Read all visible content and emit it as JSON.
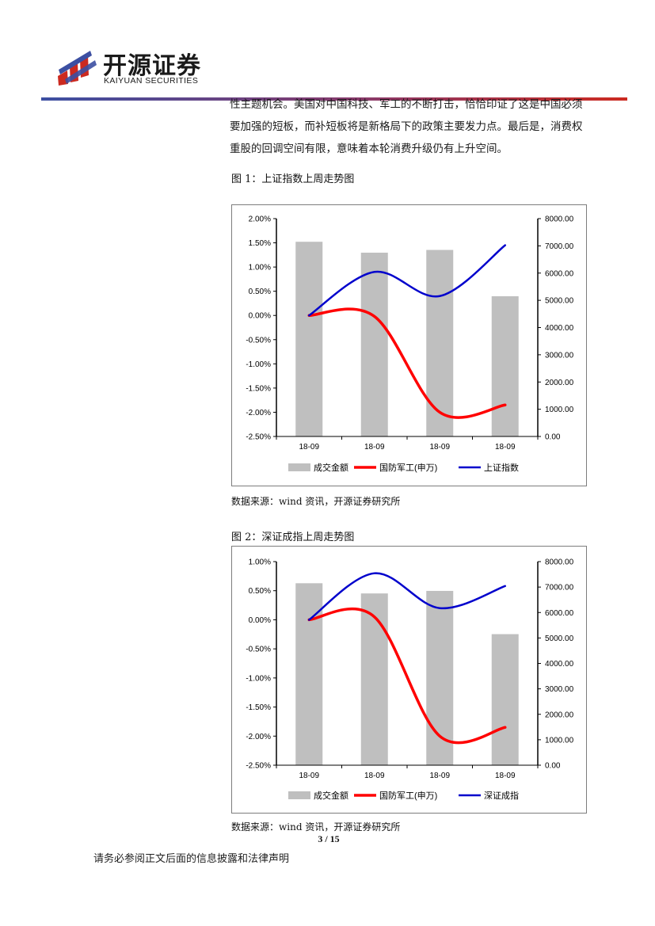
{
  "header": {
    "brand_cn": "开源证券",
    "brand_en": "KAIYUAN SECURITIES",
    "rule_colors": [
      "#cc2a20",
      "#3c4fa2"
    ]
  },
  "body_text": {
    "lines": [
      "性主题机会。美国对中国科技、军工的不断打击，恰恰印证了这是中国必须",
      "要加强的短板，而补短板将是新格局下的政策主要发力点。最后是，消费权",
      "重股的回调空间有限，意味着本轮消费升级仍有上升空间。"
    ]
  },
  "figures": [
    {
      "caption": "图 1：上证指数上周走势图",
      "source": "数据来源：wind 资讯，开源证券研究所"
    },
    {
      "caption": "图 2：深证成指上周走势图",
      "source": "数据来源：wind 资讯，开源证券研究所"
    }
  ],
  "chart_data": [
    {
      "type": "bar",
      "categories": [
        "18-09",
        "18-09",
        "18-09",
        "18-09"
      ],
      "y_left": {
        "ticks": [
          "2.00%",
          "1.50%",
          "1.00%",
          "0.50%",
          "0.00%",
          "-0.50%",
          "-1.00%",
          "-1.50%",
          "-2.00%",
          "-2.50%"
        ],
        "range": [
          -2.5,
          2.0
        ]
      },
      "y_right": {
        "ticks": [
          "8000.00",
          "7000.00",
          "6000.00",
          "5000.00",
          "4000.00",
          "3000.00",
          "2000.00",
          "1000.00",
          "0.00"
        ],
        "range": [
          0,
          8000
        ]
      },
      "series": [
        {
          "name": "成交金额",
          "kind": "bar",
          "axis": "right",
          "color": "#bfbfbf",
          "values": [
            7150,
            6750,
            6850,
            5150
          ]
        },
        {
          "name": "国防军工(申万)",
          "kind": "line",
          "axis": "left",
          "color": "#ff0000",
          "values": [
            0.0,
            -0.02,
            -2.0,
            -1.85
          ]
        },
        {
          "name": "上证指数",
          "kind": "line",
          "axis": "left",
          "color": "#0000cc",
          "values": [
            0.0,
            0.9,
            0.4,
            1.45
          ]
        }
      ],
      "grid": false,
      "legend": "bottom"
    },
    {
      "type": "bar",
      "categories": [
        "18-09",
        "18-09",
        "18-09",
        "18-09"
      ],
      "y_left": {
        "ticks": [
          "1.00%",
          "0.50%",
          "0.00%",
          "-0.50%",
          "-1.00%",
          "-1.50%",
          "-2.00%",
          "-2.50%"
        ],
        "range": [
          -2.5,
          1.0
        ]
      },
      "y_right": {
        "ticks": [
          "8000.00",
          "7000.00",
          "6000.00",
          "5000.00",
          "4000.00",
          "3000.00",
          "2000.00",
          "1000.00",
          "0.00"
        ],
        "range": [
          0,
          8000
        ]
      },
      "series": [
        {
          "name": "成交金额",
          "kind": "bar",
          "axis": "right",
          "color": "#bfbfbf",
          "values": [
            7150,
            6750,
            6850,
            5150
          ]
        },
        {
          "name": "国防军工(申万)",
          "kind": "line",
          "axis": "left",
          "color": "#ff0000",
          "values": [
            0.0,
            0.05,
            -2.0,
            -1.85
          ]
        },
        {
          "name": "深证成指",
          "kind": "line",
          "axis": "left",
          "color": "#0000cc",
          "values": [
            0.0,
            0.8,
            0.2,
            0.58
          ]
        }
      ],
      "grid": false,
      "legend": "bottom"
    }
  ],
  "footer": {
    "page_number": "3 / 15",
    "disclaimer": "请务必参阅正文后面的信息披露和法律声明"
  }
}
